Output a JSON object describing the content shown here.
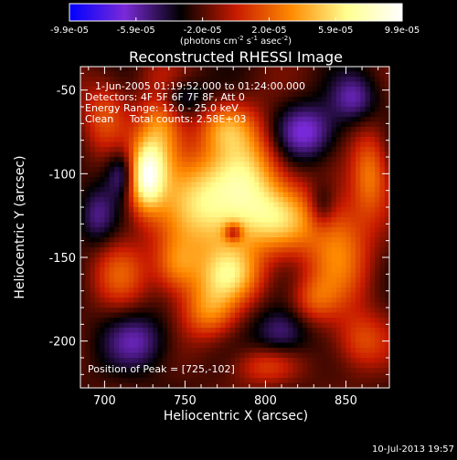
{
  "chart_data": {
    "type": "heatmap",
    "title": "Reconstructed RHESSI Image",
    "xlabel": "Heliocentric X (arcsec)",
    "ylabel": "Heliocentric Y (arcsec)",
    "xlim": [
      685,
      877
    ],
    "ylim": [
      -228,
      -36
    ],
    "xticks": [
      700,
      750,
      800,
      850
    ],
    "yticks": [
      -50,
      -100,
      -150,
      -200
    ],
    "colorbar": {
      "ticks": [
        "-9.9e-05",
        "-5.9e-05",
        "-2.0e-05",
        "2.0e-05",
        "5.9e-05",
        "9.9e-05"
      ],
      "range": [
        -9.9e-05,
        9.9e-05
      ],
      "unit_prefix": "(photons cm",
      "unit_exp1": "-2",
      "unit_mid": " s",
      "unit_exp2": "-1",
      "unit_suffix": " asec",
      "unit_exp3": "-2",
      "unit_close": ")",
      "colormap": [
        "#0000ff",
        "#7a2ad8",
        "#000000",
        "#c81a00",
        "#ff8a00",
        "#ffff90",
        "#ffffff"
      ]
    },
    "annotations": [
      "1-Jun-2005 01:19:52.000 to 01:24:00.000",
      "Detectors: 4F 5F 6F 7F 8F, Att 0",
      "Energy Range: 12.0 - 25.0 keV",
      "Clean     Total counts: 2.58E+03"
    ],
    "peak_label": "Position of Peak = [725,-102]",
    "peak": [
      725,
      -102
    ],
    "sources": [
      {
        "x": 725,
        "y": -102,
        "amp": 1.0,
        "sx": 8,
        "sy": 14
      },
      {
        "x": 735,
        "y": -75,
        "amp": 0.6,
        "sx": 10,
        "sy": 22
      },
      {
        "x": 765,
        "y": -118,
        "amp": 0.85,
        "sx": 20,
        "sy": 22
      },
      {
        "x": 790,
        "y": -100,
        "amp": 0.55,
        "sx": 14,
        "sy": 22
      },
      {
        "x": 810,
        "y": -128,
        "amp": 0.6,
        "sx": 16,
        "sy": 14
      },
      {
        "x": 778,
        "y": -160,
        "amp": 0.65,
        "sx": 14,
        "sy": 12
      },
      {
        "x": 765,
        "y": -182,
        "amp": 0.5,
        "sx": 12,
        "sy": 12
      },
      {
        "x": 745,
        "y": -155,
        "amp": 0.45,
        "sx": 10,
        "sy": 12
      },
      {
        "x": 700,
        "y": -65,
        "amp": 0.35,
        "sx": 10,
        "sy": 15
      },
      {
        "x": 710,
        "y": -160,
        "amp": 0.35,
        "sx": 12,
        "sy": 14
      },
      {
        "x": 845,
        "y": -145,
        "amp": 0.5,
        "sx": 14,
        "sy": 24
      },
      {
        "x": 865,
        "y": -100,
        "amp": 0.45,
        "sx": 8,
        "sy": 18
      },
      {
        "x": 860,
        "y": -200,
        "amp": 0.35,
        "sx": 12,
        "sy": 12
      },
      {
        "x": 800,
        "y": -215,
        "amp": 0.3,
        "sx": 14,
        "sy": 8
      },
      {
        "x": 775,
        "y": -72,
        "amp": 0.4,
        "sx": 12,
        "sy": 10
      },
      {
        "x": 830,
        "y": -175,
        "amp": 0.3,
        "sx": 10,
        "sy": 10
      },
      {
        "x": 780,
        "y": -135,
        "amp": -0.5,
        "sx": 4,
        "sy": 4
      },
      {
        "x": 712,
        "y": -100,
        "amp": -0.45,
        "sx": 7,
        "sy": 10
      },
      {
        "x": 825,
        "y": -75,
        "amp": -0.45,
        "sx": 14,
        "sy": 12
      },
      {
        "x": 745,
        "y": -55,
        "amp": -0.35,
        "sx": 12,
        "sy": 8
      },
      {
        "x": 855,
        "y": -55,
        "amp": -0.35,
        "sx": 10,
        "sy": 10
      },
      {
        "x": 720,
        "y": -200,
        "amp": -0.35,
        "sx": 14,
        "sy": 12
      },
      {
        "x": 810,
        "y": -195,
        "amp": -0.35,
        "sx": 12,
        "sy": 10
      },
      {
        "x": 695,
        "y": -125,
        "amp": -0.3,
        "sx": 8,
        "sy": 12
      },
      {
        "x": 835,
        "y": -120,
        "amp": -0.3,
        "sx": 6,
        "sy": 10
      }
    ]
  },
  "footer": {
    "timestamp": "10-Jul-2013 19:57"
  }
}
